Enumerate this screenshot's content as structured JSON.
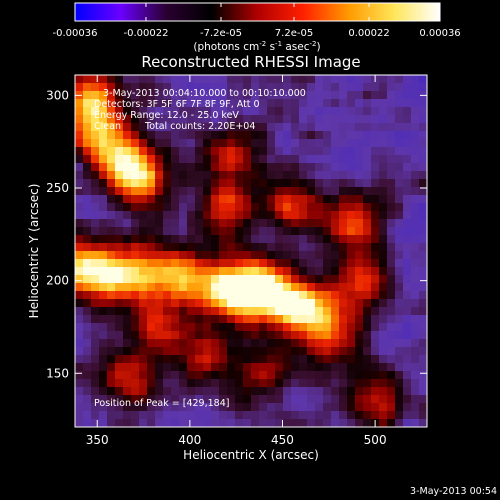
{
  "colorbar": {
    "ticks": [
      "-0.00036",
      "-0.00022",
      "-7.2e-05",
      "7.2e-05",
      "0.00022",
      "0.00036"
    ],
    "tick_values": [
      -0.00036,
      -0.00022,
      -7.2e-05,
      7.2e-05,
      0.00022,
      0.00036
    ],
    "range": [
      -0.00036,
      0.00036
    ],
    "unit_base": "(photons cm",
    "unit_exp1": "-2",
    "unit_mid1": " s",
    "unit_exp2": "-1",
    "unit_mid2": " asec",
    "unit_exp3": "-2",
    "unit_close": ")",
    "colors": [
      "#0000ff",
      "#6a00ff",
      "#2a0030",
      "#000000",
      "#b00000",
      "#ff2000",
      "#ff9a00",
      "#ffe65a",
      "#ffffff"
    ]
  },
  "chart_data": {
    "type": "heatmap",
    "title": "Reconstructed RHESSI Image",
    "xlabel": "Heliocentric X (arcsec)",
    "ylabel": "Heliocentric Y (arcsec)",
    "xlim": [
      338,
      528
    ],
    "ylim": [
      121,
      311
    ],
    "x_ticks": [
      350,
      400,
      450,
      500
    ],
    "y_ticks": [
      150,
      200,
      250,
      300
    ],
    "peak": [
      429,
      184
    ],
    "annotations": {
      "time": "3-May-2013 00:04:10.000 to 00:10:10.000",
      "detectors": "Detectors: 3F 5F 6F 7F 8F 9F, Att 0",
      "energy": "Energy Range: 12.0 - 25.0 keV",
      "clean": "Clean",
      "counts": "Total counts: 2.20E+04",
      "peak": "Position of Peak = [429,184]"
    },
    "grid": false,
    "sources": [
      {
        "x": 436,
        "y": 196,
        "intensity": 1.0
      },
      {
        "x": 420,
        "y": 193,
        "intensity": 0.85
      },
      {
        "x": 454,
        "y": 188,
        "intensity": 0.8
      },
      {
        "x": 470,
        "y": 182,
        "intensity": 0.7
      },
      {
        "x": 398,
        "y": 202,
        "intensity": 0.75
      },
      {
        "x": 375,
        "y": 205,
        "intensity": 0.7
      },
      {
        "x": 357,
        "y": 202,
        "intensity": 0.65
      },
      {
        "x": 340,
        "y": 208,
        "intensity": 0.85
      },
      {
        "x": 372,
        "y": 255,
        "intensity": 0.9
      },
      {
        "x": 360,
        "y": 268,
        "intensity": 0.6
      },
      {
        "x": 348,
        "y": 300,
        "intensity": 0.75
      },
      {
        "x": 348,
        "y": 282,
        "intensity": 0.6
      },
      {
        "x": 420,
        "y": 238,
        "intensity": 0.65
      },
      {
        "x": 425,
        "y": 268,
        "intensity": 0.55
      },
      {
        "x": 455,
        "y": 240,
        "intensity": 0.6
      },
      {
        "x": 488,
        "y": 232,
        "intensity": 0.65
      },
      {
        "x": 492,
        "y": 200,
        "intensity": 0.6
      },
      {
        "x": 478,
        "y": 165,
        "intensity": 0.45
      },
      {
        "x": 382,
        "y": 173,
        "intensity": 0.55
      },
      {
        "x": 408,
        "y": 160,
        "intensity": 0.55
      },
      {
        "x": 438,
        "y": 150,
        "intensity": 0.45
      },
      {
        "x": 500,
        "y": 134,
        "intensity": 0.5
      },
      {
        "x": 366,
        "y": 146,
        "intensity": 0.5
      }
    ]
  },
  "footer": {
    "timestamp": "3-May-2013 00:54"
  }
}
